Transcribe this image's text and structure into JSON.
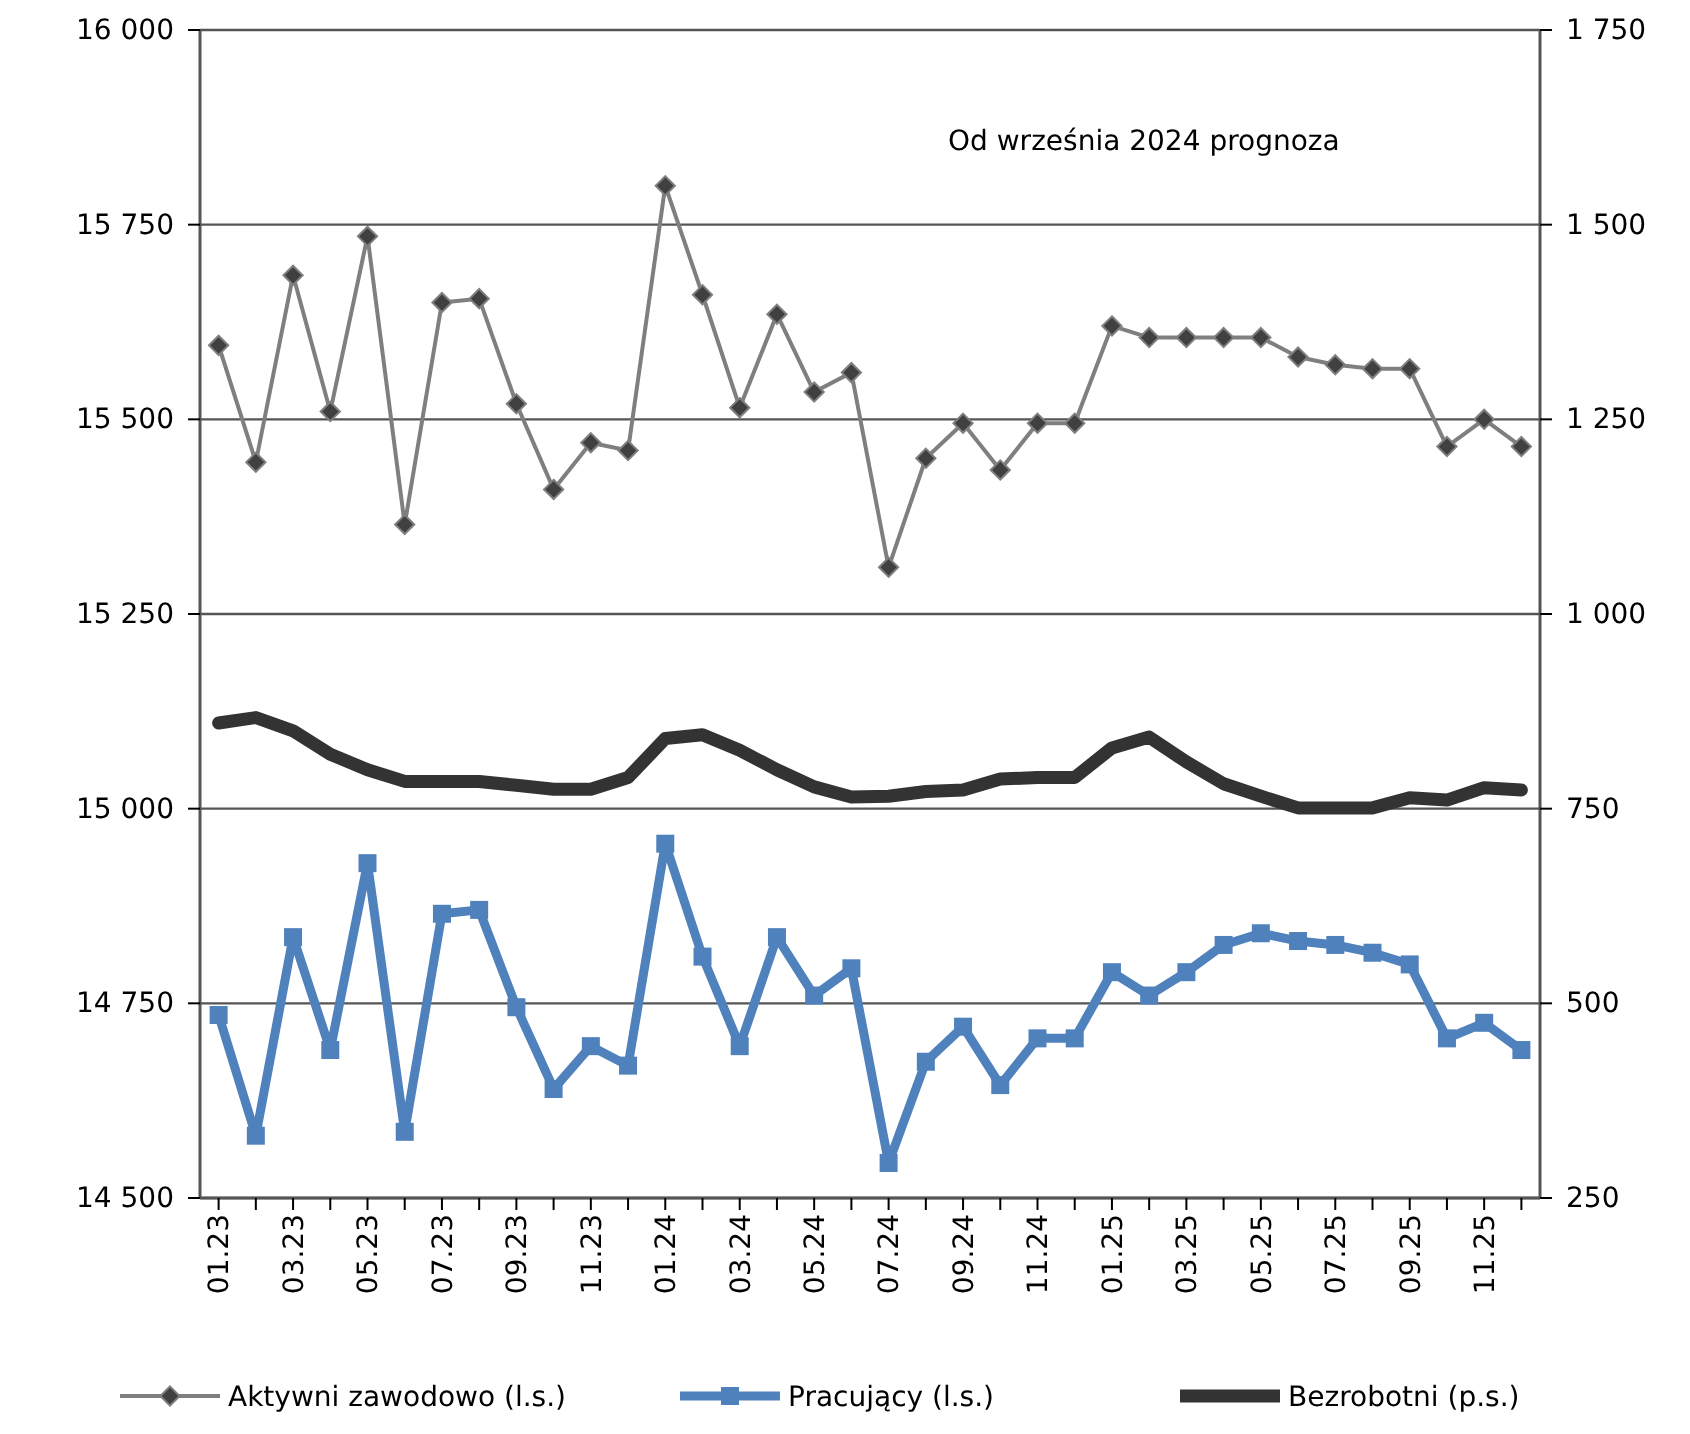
{
  "chart_data": {
    "type": "line",
    "categories": [
      "01.23",
      null,
      "03.23",
      null,
      "05.23",
      null,
      "07.23",
      null,
      "09.23",
      null,
      "11.23",
      null,
      "01.24",
      null,
      "03.24",
      null,
      "05.24",
      null,
      "07.24",
      null,
      "09.24",
      null,
      "11.24",
      null,
      "01.25",
      null,
      "03.25",
      null,
      "05.25",
      null,
      "07.25",
      null,
      "09.25",
      null,
      "11.25",
      null
    ],
    "series": [
      {
        "name": "Aktywni zawodowo (l.s.)",
        "color": "#7f7f7f",
        "marker": "diamond",
        "values": [
          15595,
          15445,
          15685,
          15510,
          15735,
          15365,
          15650,
          15655,
          15520,
          15410,
          15470,
          15460,
          15800,
          15660,
          15515,
          15635,
          15535,
          15560,
          15310,
          15450,
          15495,
          15435,
          15495,
          15495,
          15620,
          15605,
          15605,
          15605,
          15605,
          15580,
          15570,
          15565,
          15565,
          15465,
          15500,
          15465
        ]
      },
      {
        "name": "Pracujący (l.s.)",
        "color": "#4f81bd",
        "marker": "square",
        "values": [
          14735,
          14580,
          14835,
          14690,
          14930,
          14585,
          14865,
          14870,
          14745,
          14640,
          14695,
          14670,
          14955,
          14810,
          14695,
          14835,
          14760,
          14795,
          14545,
          14675,
          14720,
          14645,
          14705,
          14705,
          14790,
          14760,
          14790,
          14825,
          14840,
          14830,
          14825,
          14815,
          14800,
          14705,
          14725,
          14690
        ]
      },
      {
        "name": "Bezrobotni (p.s.)",
        "color": "#333333",
        "axis": "y2",
        "marker": "none",
        "values": [
          860,
          867,
          850,
          820,
          800,
          785,
          785,
          785,
          780,
          775,
          775,
          790,
          840,
          845,
          825,
          800,
          778,
          765,
          766,
          772,
          774,
          788,
          790,
          790,
          828,
          842,
          810,
          782,
          766,
          751,
          751,
          751,
          764,
          761,
          777,
          774
        ]
      }
    ],
    "ylim": [
      14500,
      16000
    ],
    "yticks": [
      {
        "value": 14500,
        "label": "14 500"
      },
      {
        "value": 14750,
        "label": "14 750"
      },
      {
        "value": 15000,
        "label": "15 000"
      },
      {
        "value": 15250,
        "label": "15 250"
      },
      {
        "value": 15500,
        "label": "15 500"
      },
      {
        "value": 15750,
        "label": "15 750"
      },
      {
        "value": 16000,
        "label": "16 000"
      }
    ],
    "y2lim": [
      250,
      1750
    ],
    "y2ticks": [
      250,
      500,
      750,
      {
        "value": 1000,
        "label": "1 000"
      },
      {
        "value": 1250,
        "label": "1 250"
      },
      {
        "value": 1500,
        "label": "1 500"
      },
      {
        "value": 1750,
        "label": "1 750"
      }
    ],
    "grid": "y",
    "legend": "bottom",
    "annotations": [
      "Od września 2024 prognoza"
    ]
  }
}
